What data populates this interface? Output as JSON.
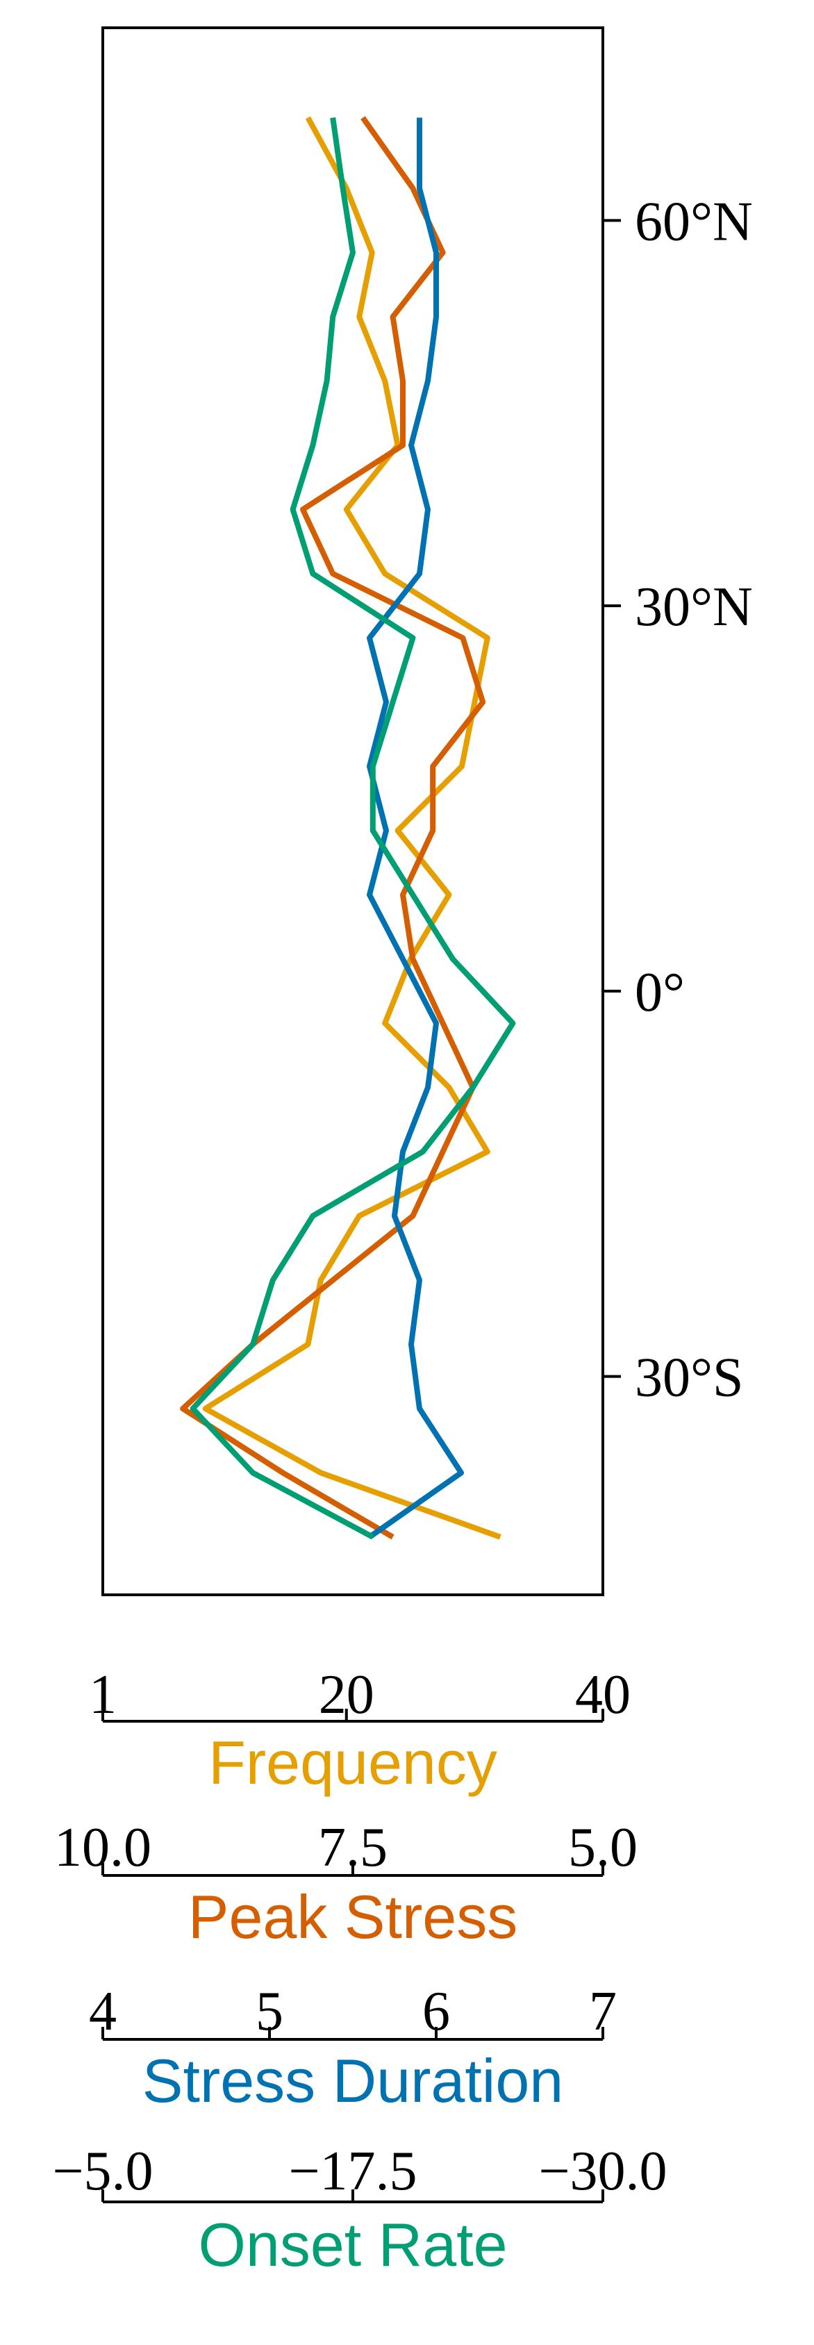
{
  "chart_data": {
    "type": "line",
    "title": "",
    "orientation": "latitude-profile",
    "y_axis": {
      "label": "",
      "ylim": [
        -47,
        75
      ],
      "ticks": [
        {
          "value": 60,
          "label": "60°N"
        },
        {
          "value": 30,
          "label": "30°N"
        },
        {
          "value": 0,
          "label": "0°"
        },
        {
          "value": -30,
          "label": "30°S"
        }
      ]
    },
    "grid": false,
    "legend": "none",
    "x_axes": [
      {
        "id": "frequency",
        "label": "Frequency",
        "color": "#E69F00",
        "range": [
          1,
          40
        ],
        "ticks": [
          {
            "value": 1,
            "label": "1"
          },
          {
            "value": 20,
            "label": "20"
          },
          {
            "value": 40,
            "label": "40"
          }
        ]
      },
      {
        "id": "peak-stress",
        "label": "Peak Stress",
        "color": "#D55E00",
        "range": [
          10.0,
          5.0
        ],
        "ticks": [
          {
            "value": 10.0,
            "label": "10.0"
          },
          {
            "value": 7.5,
            "label": "7.5"
          },
          {
            "value": 5.0,
            "label": "5.0"
          }
        ]
      },
      {
        "id": "stress-duration",
        "label": "Stress Duration",
        "color": "#0072B2",
        "range": [
          4,
          7
        ],
        "ticks": [
          {
            "value": 4,
            "label": "4"
          },
          {
            "value": 5,
            "label": "5"
          },
          {
            "value": 6,
            "label": "6"
          },
          {
            "value": 7,
            "label": "7"
          }
        ]
      },
      {
        "id": "onset-rate",
        "label": "Onset Rate",
        "color": "#009E73",
        "range": [
          -5.0,
          -30.0
        ],
        "ticks": [
          {
            "value": -5.0,
            "label": "−5.0"
          },
          {
            "value": -17.5,
            "label": "−17.5"
          },
          {
            "value": -30.0,
            "label": "−30.0"
          }
        ]
      }
    ],
    "series": [
      {
        "axis": "frequency",
        "color": "#E69F00",
        "points": [
          {
            "lat": 68,
            "value": 17
          },
          {
            "lat": 62.5,
            "value": 20
          },
          {
            "lat": 57.5,
            "value": 22
          },
          {
            "lat": 52.5,
            "value": 21
          },
          {
            "lat": 47.5,
            "value": 23
          },
          {
            "lat": 42.5,
            "value": 24
          },
          {
            "lat": 37.5,
            "value": 20
          },
          {
            "lat": 32.5,
            "value": 23
          },
          {
            "lat": 27.5,
            "value": 31
          },
          {
            "lat": 22.5,
            "value": 30
          },
          {
            "lat": 17.5,
            "value": 29
          },
          {
            "lat": 12.5,
            "value": 24
          },
          {
            "lat": 7.5,
            "value": 28
          },
          {
            "lat": 2.5,
            "value": 25
          },
          {
            "lat": -2.5,
            "value": 23
          },
          {
            "lat": -7.5,
            "value": 28
          },
          {
            "lat": -12.5,
            "value": 31
          },
          {
            "lat": -17.5,
            "value": 21
          },
          {
            "lat": -22.5,
            "value": 18
          },
          {
            "lat": -27.5,
            "value": 17
          },
          {
            "lat": -32.5,
            "value": 9
          },
          {
            "lat": -37.5,
            "value": 18
          },
          {
            "lat": -42.5,
            "value": 32
          }
        ]
      },
      {
        "axis": "peak-stress",
        "color": "#D55E00",
        "points": [
          {
            "lat": 68,
            "value": 7.4
          },
          {
            "lat": 62.5,
            "value": 6.9
          },
          {
            "lat": 57.5,
            "value": 6.6
          },
          {
            "lat": 52.5,
            "value": 7.1
          },
          {
            "lat": 47.5,
            "value": 7.0
          },
          {
            "lat": 42.5,
            "value": 7.0
          },
          {
            "lat": 37.5,
            "value": 8.0
          },
          {
            "lat": 32.5,
            "value": 7.7
          },
          {
            "lat": 27.5,
            "value": 6.4
          },
          {
            "lat": 22.5,
            "value": 6.2
          },
          {
            "lat": 17.5,
            "value": 6.7
          },
          {
            "lat": 12.5,
            "value": 6.7
          },
          {
            "lat": 7.5,
            "value": 7.0
          },
          {
            "lat": 2.5,
            "value": 6.9
          },
          {
            "lat": -2.5,
            "value": 6.6
          },
          {
            "lat": -7.5,
            "value": 6.3
          },
          {
            "lat": -12.5,
            "value": 6.6
          },
          {
            "lat": -17.5,
            "value": 6.9
          },
          {
            "lat": -22.5,
            "value": 7.7
          },
          {
            "lat": -27.5,
            "value": 8.5
          },
          {
            "lat": -32.5,
            "value": 9.2
          },
          {
            "lat": -37.5,
            "value": 8.2
          },
          {
            "lat": -42.5,
            "value": 7.1
          }
        ]
      },
      {
        "axis": "stress-duration",
        "color": "#0072B2",
        "points": [
          {
            "lat": 68,
            "value": 5.9
          },
          {
            "lat": 62.5,
            "value": 5.9
          },
          {
            "lat": 57.5,
            "value": 6.0
          },
          {
            "lat": 52.5,
            "value": 6.0
          },
          {
            "lat": 47.5,
            "value": 5.95
          },
          {
            "lat": 42.5,
            "value": 5.85
          },
          {
            "lat": 37.5,
            "value": 5.95
          },
          {
            "lat": 32.5,
            "value": 5.9
          },
          {
            "lat": 27.5,
            "value": 5.6
          },
          {
            "lat": 22.5,
            "value": 5.7
          },
          {
            "lat": 17.5,
            "value": 5.6
          },
          {
            "lat": 12.5,
            "value": 5.7
          },
          {
            "lat": 7.5,
            "value": 5.6
          },
          {
            "lat": 2.5,
            "value": 5.8
          },
          {
            "lat": -2.5,
            "value": 6.0
          },
          {
            "lat": -7.5,
            "value": 5.95
          },
          {
            "lat": -12.5,
            "value": 5.8
          },
          {
            "lat": -17.5,
            "value": 5.75
          },
          {
            "lat": -22.5,
            "value": 5.9
          },
          {
            "lat": -27.5,
            "value": 5.85
          },
          {
            "lat": -32.5,
            "value": 5.9
          },
          {
            "lat": -37.5,
            "value": 6.15
          },
          {
            "lat": -42.5,
            "value": 5.6
          }
        ]
      },
      {
        "axis": "onset-rate",
        "color": "#009E73",
        "points": [
          {
            "lat": 68,
            "value": -16.5
          },
          {
            "lat": 62.5,
            "value": -17.0
          },
          {
            "lat": 57.5,
            "value": -17.5
          },
          {
            "lat": 52.5,
            "value": -16.5
          },
          {
            "lat": 47.5,
            "value": -16.2
          },
          {
            "lat": 42.5,
            "value": -15.5
          },
          {
            "lat": 37.5,
            "value": -14.5
          },
          {
            "lat": 32.5,
            "value": -15.5
          },
          {
            "lat": 27.5,
            "value": -20.5
          },
          {
            "lat": 22.5,
            "value": -19.5
          },
          {
            "lat": 17.5,
            "value": -18.5
          },
          {
            "lat": 12.5,
            "value": -18.5
          },
          {
            "lat": 7.5,
            "value": -20.5
          },
          {
            "lat": 2.5,
            "value": -22.5
          },
          {
            "lat": -2.5,
            "value": -25.5
          },
          {
            "lat": -7.5,
            "value": -23.5
          },
          {
            "lat": -12.5,
            "value": -21.0
          },
          {
            "lat": -17.5,
            "value": -15.5
          },
          {
            "lat": -22.5,
            "value": -13.5
          },
          {
            "lat": -27.5,
            "value": -12.5
          },
          {
            "lat": -32.5,
            "value": -9.5
          },
          {
            "lat": -37.5,
            "value": -12.5
          },
          {
            "lat": -42.5,
            "value": -18.5
          }
        ]
      }
    ]
  }
}
